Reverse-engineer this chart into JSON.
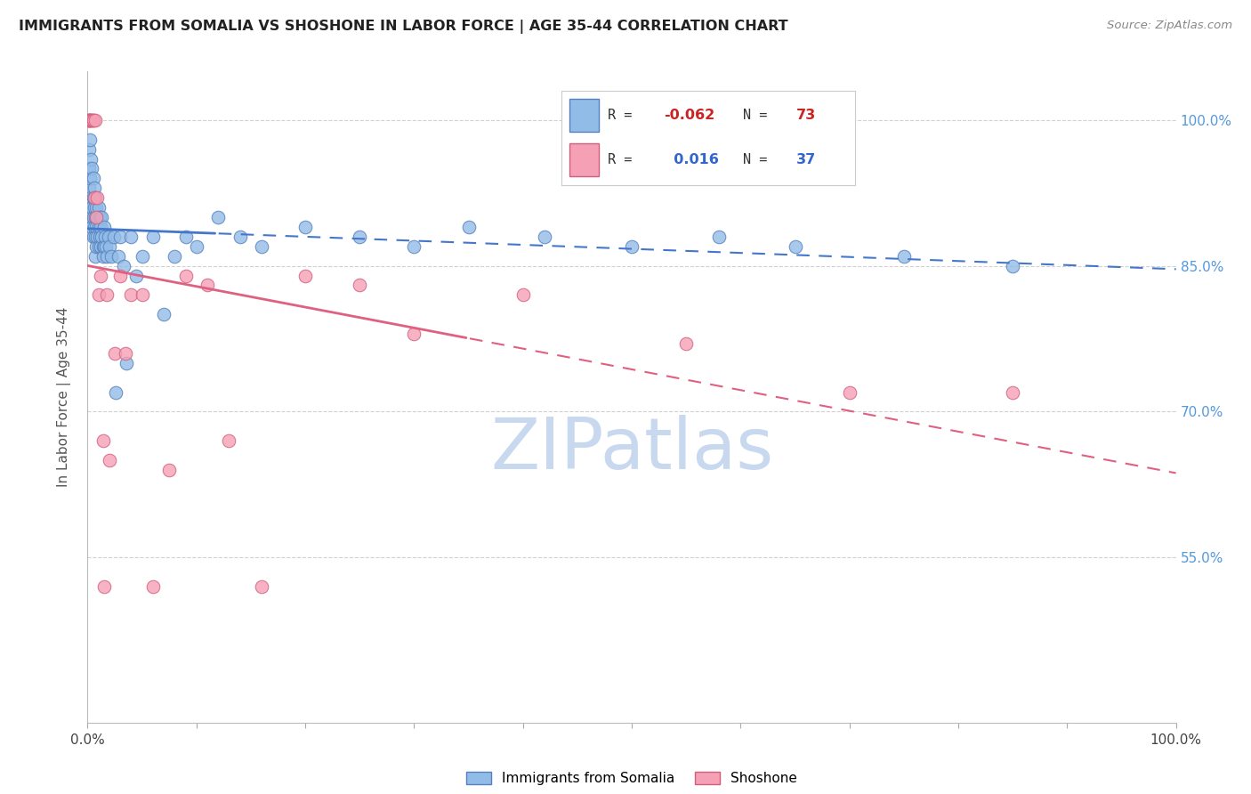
{
  "title": "IMMIGRANTS FROM SOMALIA VS SHOSHONE IN LABOR FORCE | AGE 35-44 CORRELATION CHART",
  "source": "Source: ZipAtlas.com",
  "ylabel": "In Labor Force | Age 35-44",
  "xlim": [
    0.0,
    1.0
  ],
  "ylim": [
    0.38,
    1.05
  ],
  "yticks": [
    0.55,
    0.7,
    0.85,
    1.0
  ],
  "ytick_labels": [
    "55.0%",
    "70.0%",
    "85.0%",
    "100.0%"
  ],
  "xticks": [
    0.0,
    0.1,
    0.2,
    0.3,
    0.4,
    0.5,
    0.6,
    0.7,
    0.8,
    0.9,
    1.0
  ],
  "xtick_labels": [
    "0.0%",
    "",
    "",
    "",
    "",
    "",
    "",
    "",
    "",
    "",
    "100.0%"
  ],
  "somalia_color": "#92bce8",
  "shoshone_color": "#f5a0b4",
  "somalia_edge": "#5580bb",
  "shoshone_edge": "#d06080",
  "R_somalia": -0.062,
  "N_somalia": 73,
  "R_shoshone": 0.016,
  "N_shoshone": 37,
  "somalia_x": [
    0.001,
    0.001,
    0.001,
    0.002,
    0.002,
    0.003,
    0.003,
    0.003,
    0.004,
    0.004,
    0.004,
    0.005,
    0.005,
    0.005,
    0.005,
    0.006,
    0.006,
    0.006,
    0.007,
    0.007,
    0.007,
    0.007,
    0.008,
    0.008,
    0.008,
    0.009,
    0.009,
    0.01,
    0.01,
    0.01,
    0.011,
    0.011,
    0.012,
    0.012,
    0.013,
    0.013,
    0.014,
    0.014,
    0.015,
    0.015,
    0.016,
    0.017,
    0.018,
    0.019,
    0.02,
    0.022,
    0.024,
    0.026,
    0.028,
    0.03,
    0.033,
    0.036,
    0.04,
    0.045,
    0.05,
    0.06,
    0.07,
    0.08,
    0.09,
    0.1,
    0.12,
    0.14,
    0.16,
    0.2,
    0.25,
    0.3,
    0.35,
    0.42,
    0.5,
    0.58,
    0.65,
    0.75,
    0.85
  ],
  "somalia_y": [
    0.97,
    0.95,
    0.93,
    0.98,
    0.94,
    0.96,
    0.92,
    0.9,
    0.95,
    0.91,
    0.89,
    0.94,
    0.92,
    0.9,
    0.88,
    0.93,
    0.91,
    0.89,
    0.92,
    0.9,
    0.88,
    0.86,
    0.91,
    0.89,
    0.87,
    0.9,
    0.88,
    0.91,
    0.89,
    0.87,
    0.9,
    0.88,
    0.89,
    0.87,
    0.9,
    0.88,
    0.87,
    0.86,
    0.89,
    0.87,
    0.88,
    0.87,
    0.86,
    0.88,
    0.87,
    0.86,
    0.88,
    0.72,
    0.86,
    0.88,
    0.85,
    0.75,
    0.88,
    0.84,
    0.86,
    0.88,
    0.8,
    0.86,
    0.88,
    0.87,
    0.9,
    0.88,
    0.87,
    0.89,
    0.88,
    0.87,
    0.89,
    0.88,
    0.87,
    0.88,
    0.87,
    0.86,
    0.85
  ],
  "shoshone_x": [
    0.001,
    0.001,
    0.001,
    0.001,
    0.003,
    0.003,
    0.004,
    0.005,
    0.005,
    0.006,
    0.007,
    0.008,
    0.009,
    0.01,
    0.012,
    0.014,
    0.015,
    0.018,
    0.02,
    0.025,
    0.03,
    0.035,
    0.04,
    0.05,
    0.06,
    0.075,
    0.09,
    0.11,
    0.13,
    0.16,
    0.2,
    0.25,
    0.3,
    0.4,
    0.55,
    0.7,
    0.85
  ],
  "shoshone_y": [
    1.0,
    1.0,
    1.0,
    1.0,
    1.0,
    1.0,
    1.0,
    1.0,
    1.0,
    0.92,
    1.0,
    0.9,
    0.92,
    0.82,
    0.84,
    0.67,
    0.52,
    0.82,
    0.65,
    0.76,
    0.84,
    0.76,
    0.82,
    0.82,
    0.52,
    0.64,
    0.84,
    0.83,
    0.67,
    0.52,
    0.84,
    0.83,
    0.78,
    0.82,
    0.77,
    0.72,
    0.72
  ],
  "background_color": "#ffffff",
  "grid_color": "#cccccc",
  "watermark_text": "ZIPatlas",
  "watermark_color": "#c8d8ee",
  "somalia_split": 0.12,
  "shoshone_split": 0.35
}
